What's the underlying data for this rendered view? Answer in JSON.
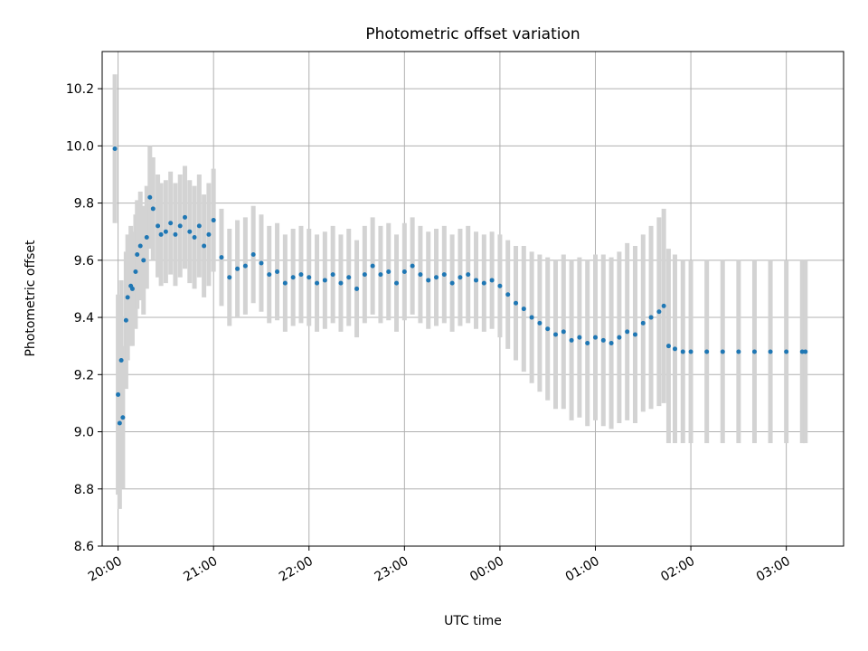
{
  "chart_data": {
    "type": "scatter",
    "title": "Photometric offset variation",
    "xlabel": "UTC time",
    "ylabel": "Photometric offset",
    "x_ticks": [
      "20:00",
      "21:00",
      "22:00",
      "23:00",
      "00:00",
      "01:00",
      "02:00",
      "03:00"
    ],
    "y_ticks": [
      "8.6",
      "8.8",
      "9.0",
      "9.2",
      "9.4",
      "9.6",
      "9.8",
      "10.0",
      "10.2"
    ],
    "xlim": [
      "19:50",
      "03:36"
    ],
    "ylim": [
      8.6,
      10.33
    ],
    "grid": true,
    "colors": {
      "points": "#1f77b4",
      "errorbars": "#d3d3d3",
      "grid": "#b0b0b0"
    },
    "series": [
      {
        "x": [
          "19:58",
          "20:00",
          "20:01",
          "20:02",
          "20:03",
          "20:05",
          "20:06",
          "20:08",
          "20:09",
          "20:11",
          "20:12",
          "20:14",
          "20:16",
          "20:18",
          "20:20",
          "20:22",
          "20:25",
          "20:27",
          "20:30",
          "20:33",
          "20:36",
          "20:39",
          "20:42",
          "20:45",
          "20:48",
          "20:51",
          "20:54",
          "20:57",
          "21:00",
          "21:05",
          "21:10",
          "21:15",
          "21:20",
          "21:25",
          "21:30",
          "21:35",
          "21:40",
          "21:45",
          "21:50",
          "21:55",
          "22:00",
          "22:05",
          "22:10",
          "22:15",
          "22:20",
          "22:25",
          "22:30",
          "22:35",
          "22:40",
          "22:45",
          "22:50",
          "22:55",
          "23:00",
          "23:05",
          "23:10",
          "23:15",
          "23:20",
          "23:25",
          "23:30",
          "23:35",
          "23:40",
          "23:45",
          "23:50",
          "23:55",
          "00:00",
          "00:05",
          "00:10",
          "00:15",
          "00:20",
          "00:25",
          "00:30",
          "00:35",
          "00:40",
          "00:45",
          "00:50",
          "00:55",
          "01:00",
          "01:05",
          "01:10",
          "01:15",
          "01:20",
          "01:25",
          "01:30",
          "01:35",
          "01:40",
          "01:43",
          "01:46",
          "01:50",
          "01:55",
          "02:00",
          "02:10",
          "02:20",
          "02:30",
          "02:40",
          "02:50",
          "03:00",
          "03:10",
          "03:12"
        ],
        "y": [
          9.99,
          9.13,
          9.03,
          9.25,
          9.05,
          9.39,
          9.47,
          9.51,
          9.5,
          9.56,
          9.62,
          9.65,
          9.6,
          9.68,
          9.82,
          9.78,
          9.72,
          9.69,
          9.7,
          9.73,
          9.69,
          9.72,
          9.75,
          9.7,
          9.68,
          9.72,
          9.65,
          9.69,
          9.74,
          9.61,
          9.54,
          9.57,
          9.58,
          9.62,
          9.59,
          9.55,
          9.56,
          9.52,
          9.54,
          9.55,
          9.54,
          9.52,
          9.53,
          9.55,
          9.52,
          9.54,
          9.5,
          9.55,
          9.58,
          9.55,
          9.56,
          9.52,
          9.56,
          9.58,
          9.55,
          9.53,
          9.54,
          9.55,
          9.52,
          9.54,
          9.55,
          9.53,
          9.52,
          9.53,
          9.51,
          9.48,
          9.45,
          9.43,
          9.4,
          9.38,
          9.36,
          9.34,
          9.35,
          9.32,
          9.33,
          9.31,
          9.33,
          9.32,
          9.31,
          9.33,
          9.35,
          9.34,
          9.38,
          9.4,
          9.42,
          9.44,
          9.3,
          9.29,
          9.28,
          9.28,
          9.28,
          9.28,
          9.28,
          9.28,
          9.28,
          9.28,
          9.28,
          9.28
        ],
        "err": [
          0.26,
          0.35,
          0.3,
          0.28,
          0.25,
          0.24,
          0.22,
          0.21,
          0.2,
          0.2,
          0.19,
          0.19,
          0.19,
          0.18,
          0.18,
          0.18,
          0.18,
          0.18,
          0.18,
          0.18,
          0.18,
          0.18,
          0.18,
          0.18,
          0.18,
          0.18,
          0.18,
          0.18,
          0.18,
          0.17,
          0.17,
          0.17,
          0.17,
          0.17,
          0.17,
          0.17,
          0.17,
          0.17,
          0.17,
          0.17,
          0.17,
          0.17,
          0.17,
          0.17,
          0.17,
          0.17,
          0.17,
          0.17,
          0.17,
          0.17,
          0.17,
          0.17,
          0.17,
          0.17,
          0.17,
          0.17,
          0.17,
          0.17,
          0.17,
          0.17,
          0.17,
          0.17,
          0.17,
          0.17,
          0.18,
          0.19,
          0.2,
          0.22,
          0.23,
          0.24,
          0.25,
          0.26,
          0.27,
          0.28,
          0.28,
          0.29,
          0.29,
          0.3,
          0.3,
          0.3,
          0.31,
          0.31,
          0.31,
          0.32,
          0.33,
          0.34,
          0.34,
          0.33,
          0.32,
          0.32,
          0.32,
          0.32,
          0.32,
          0.32,
          0.32,
          0.32,
          0.32,
          0.32
        ]
      }
    ]
  }
}
